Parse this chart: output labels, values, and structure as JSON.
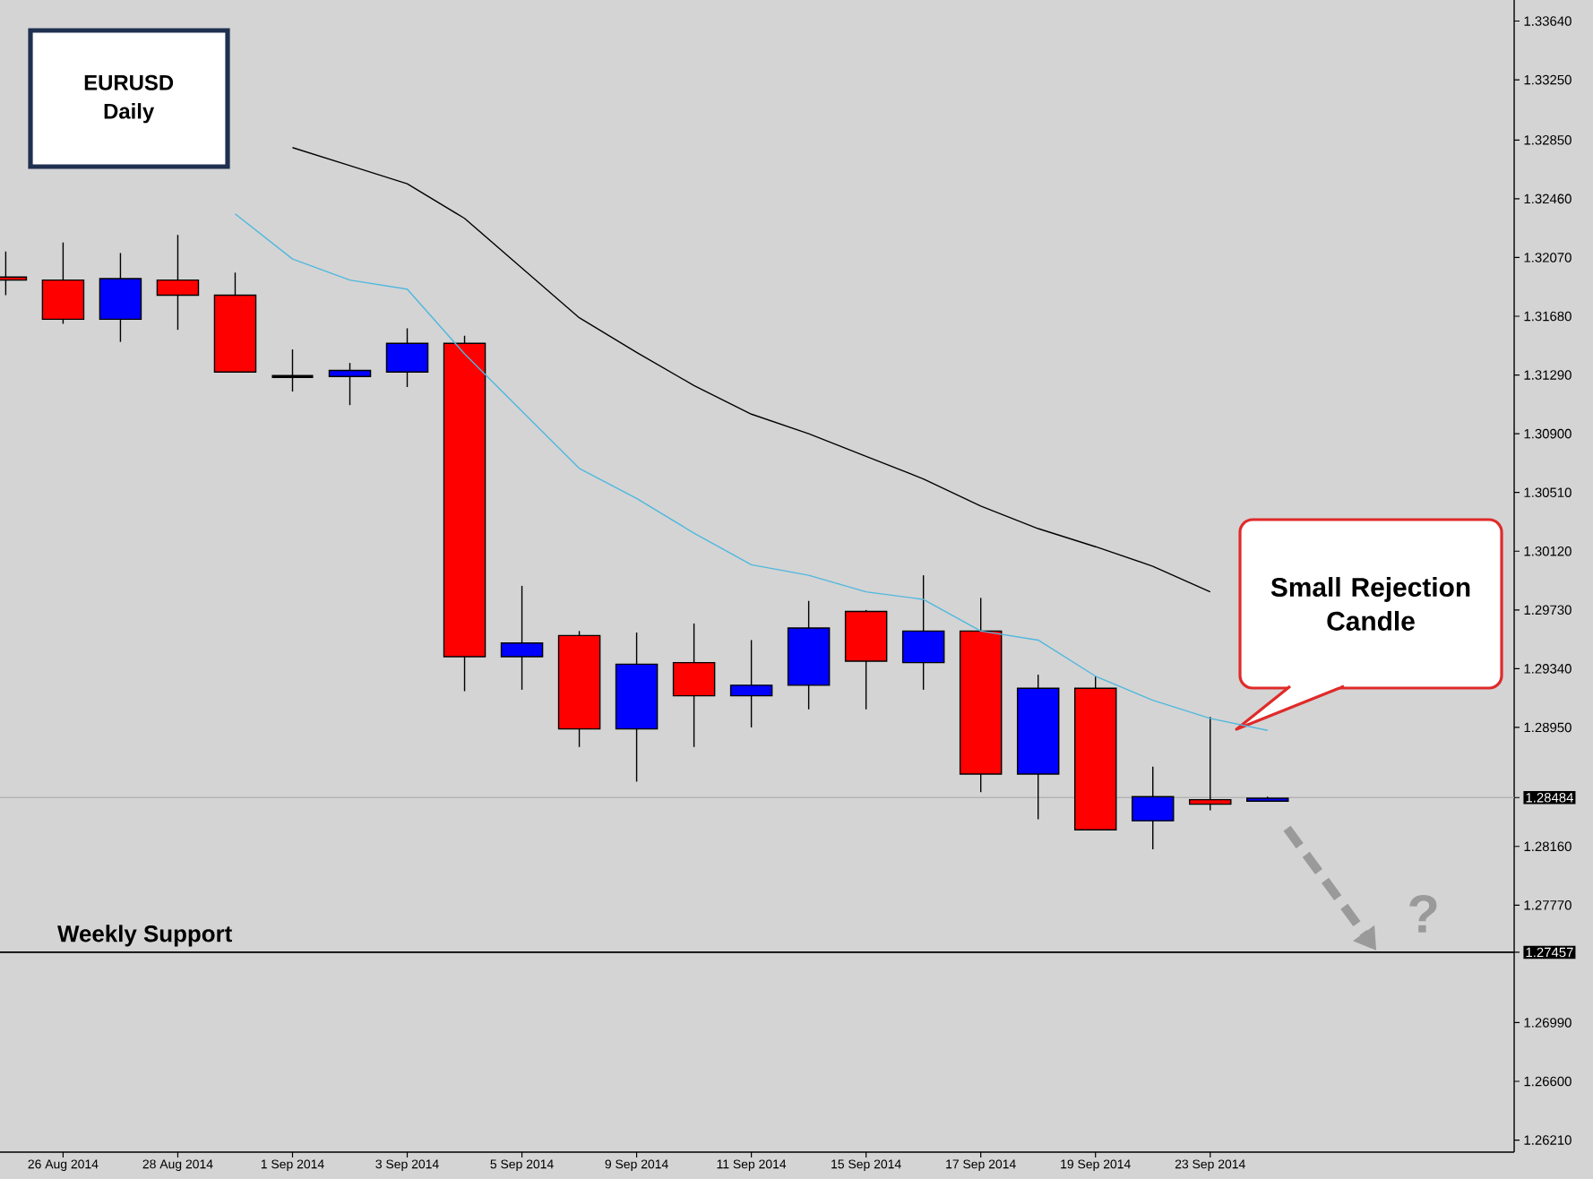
{
  "chart_data": {
    "type": "candlestick",
    "title": "EURUSD",
    "subtitle": "Daily",
    "categories": [
      null,
      "26 Aug 2014",
      null,
      "28 Aug 2014",
      null,
      "1 Sep 2014",
      null,
      "3 Sep 2014",
      null,
      "5 Sep 2014",
      null,
      "9 Sep 2014",
      null,
      "11 Sep 2014",
      null,
      "15 Sep 2014",
      null,
      "17 Sep 2014",
      null,
      "19 Sep 2014",
      null,
      "23 Sep 2014",
      null
    ],
    "ohlc": [
      [
        1.3194,
        1.3211,
        1.3182,
        1.3192
      ],
      [
        1.3192,
        1.3217,
        1.3163,
        1.3166
      ],
      [
        1.3166,
        1.321,
        1.3151,
        1.3193
      ],
      [
        1.3192,
        1.3222,
        1.3159,
        1.3182
      ],
      [
        1.3182,
        1.3197,
        1.3131,
        1.3131
      ],
      [
        1.3128,
        1.3146,
        1.3118,
        1.3128
      ],
      [
        1.3128,
        1.3137,
        1.3109,
        1.3132
      ],
      [
        1.3131,
        1.316,
        1.3121,
        1.315
      ],
      [
        1.315,
        1.3155,
        1.2919,
        1.2942
      ],
      [
        1.2942,
        1.2989,
        1.292,
        1.2951
      ],
      [
        1.2956,
        1.2959,
        1.2882,
        1.2894
      ],
      [
        1.2894,
        1.2958,
        1.2859,
        1.2937
      ],
      [
        1.2938,
        1.2964,
        1.2882,
        1.2916
      ],
      [
        1.2916,
        1.2953,
        1.2895,
        1.2923
      ],
      [
        1.2923,
        1.2979,
        1.2907,
        1.2961
      ],
      [
        1.2972,
        1.2973,
        1.2907,
        1.2939
      ],
      [
        1.2938,
        1.2996,
        1.292,
        1.2959
      ],
      [
        1.2959,
        1.2981,
        1.2852,
        1.2864
      ],
      [
        1.2864,
        1.293,
        1.2834,
        1.2921
      ],
      [
        1.2921,
        1.2929,
        1.2827,
        1.2827
      ],
      [
        1.2833,
        1.2869,
        1.2814,
        1.2849
      ],
      [
        1.2847,
        1.2902,
        1.284,
        1.2844
      ],
      [
        1.2846,
        1.2849,
        1.2846,
        1.2848
      ]
    ],
    "colors": [
      "#ff0000",
      "#ff0000",
      "#0000ff",
      "#ff0000",
      "#ff0000",
      "#000000",
      "#0000ff",
      "#0000ff",
      "#ff0000",
      "#0000ff",
      "#ff0000",
      "#0000ff",
      "#ff0000",
      "#0000ff",
      "#0000ff",
      "#ff0000",
      "#0000ff",
      "#ff0000",
      "#0000ff",
      "#ff0000",
      "#0000ff",
      "#ff0000",
      "#0000ff"
    ],
    "series": [
      {
        "type": "line",
        "color": "#4fb8de",
        "values": [
          null,
          null,
          null,
          null,
          1.3236,
          1.3206,
          1.3192,
          1.3186,
          1.3143,
          1.3105,
          1.3067,
          1.3047,
          1.3024,
          1.3003,
          1.2996,
          1.2985,
          1.298,
          1.2959,
          1.2953,
          1.2929,
          1.2913,
          1.2901,
          1.2893
        ]
      },
      {
        "type": "line",
        "color": "#000000",
        "values": [
          null,
          null,
          null,
          null,
          null,
          1.328,
          1.3268,
          1.3256,
          1.3233,
          1.32,
          1.3167,
          1.3144,
          1.3122,
          1.3103,
          1.309,
          1.3075,
          1.306,
          1.3042,
          1.3027,
          1.3015,
          1.3002,
          1.2985,
          null
        ]
      }
    ],
    "ylim": [
      1.2613,
      1.3378
    ],
    "yticks": [
      {
        "value": 1.2621,
        "label": "1.26210"
      },
      {
        "value": 1.266,
        "label": "1.26600"
      },
      {
        "value": 1.2699,
        "label": "1.26990"
      },
      {
        "value": 1.2777,
        "label": "1.27770"
      },
      {
        "value": 1.2816,
        "label": "1.28160"
      },
      {
        "value": 1.2895,
        "label": "1.28950"
      },
      {
        "value": 1.2934,
        "label": "1.29340"
      },
      {
        "value": 1.2973,
        "label": "1.29730"
      },
      {
        "value": 1.3012,
        "label": "1.30120"
      },
      {
        "value": 1.3051,
        "label": "1.30510"
      },
      {
        "value": 1.309,
        "label": "1.30900"
      },
      {
        "value": 1.3129,
        "label": "1.31290"
      },
      {
        "value": 1.3168,
        "label": "1.31680"
      },
      {
        "value": 1.3207,
        "label": "1.32070"
      },
      {
        "value": 1.3246,
        "label": "1.32460"
      },
      {
        "value": 1.3285,
        "label": "1.32850"
      },
      {
        "value": 1.3325,
        "label": "1.33250"
      },
      {
        "value": 1.3364,
        "label": "1.33640"
      },
      1.28484,
      1.27457
    ],
    "ref_lines": [
      {
        "axis": "y",
        "value": 1.28484,
        "color": "#b4b4b4"
      },
      {
        "axis": "y",
        "value": 1.27457,
        "label": "Weekly Support",
        "color": "#000000"
      }
    ],
    "annotations": [
      "Small Rejection Candle",
      "?"
    ]
  }
}
